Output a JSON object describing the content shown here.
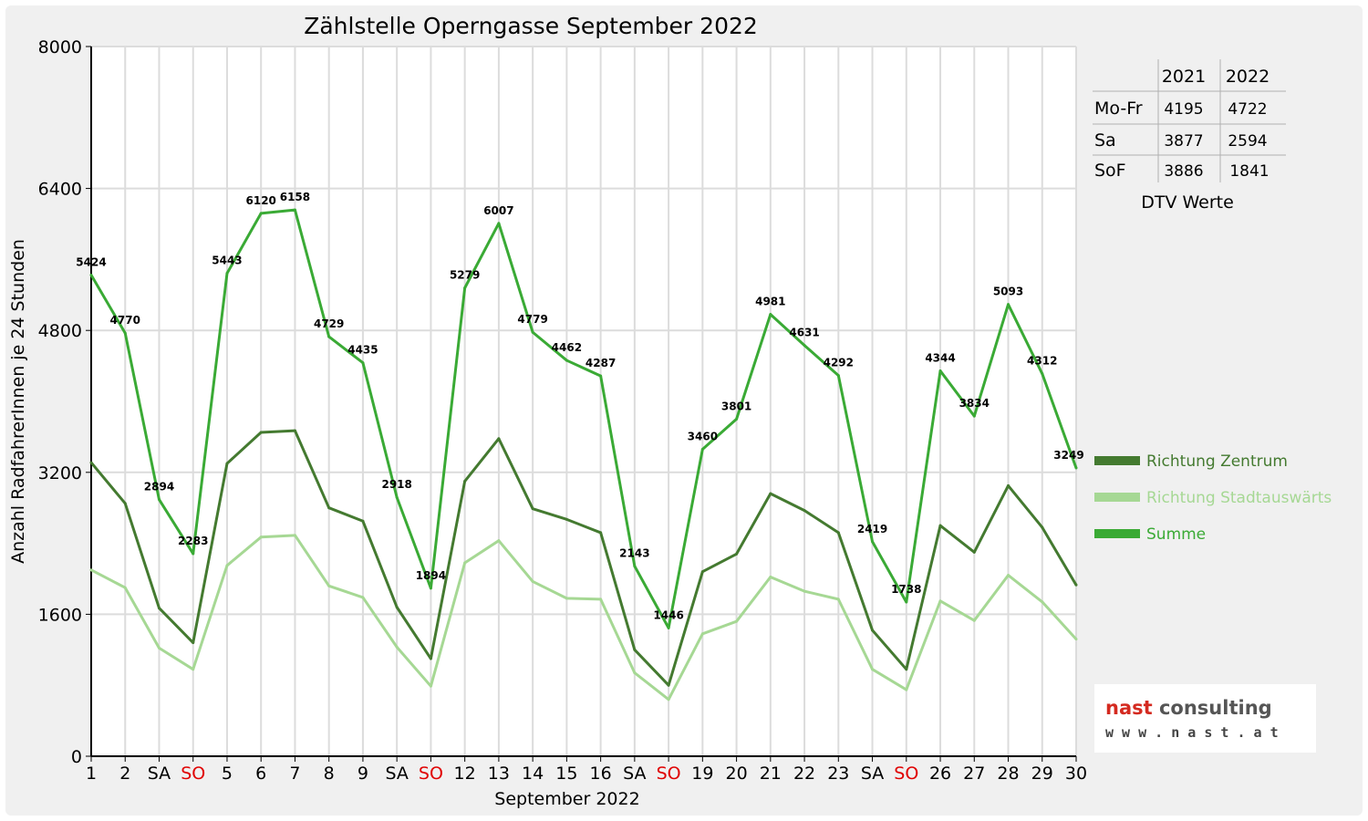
{
  "chart_data": {
    "type": "line",
    "title": "Zählstelle Operngasse September 2022",
    "xlabel": "September 2022",
    "ylabel": "Anzahl RadfahrerInnen je 24 Stunden",
    "ylim": [
      0,
      8000
    ],
    "yticks": [
      "0",
      "1600",
      "3200",
      "4800",
      "6400",
      "8000"
    ],
    "grid": true,
    "legend_position": "right",
    "categories": [
      "1",
      "2",
      "SA",
      "SO",
      "5",
      "6",
      "7",
      "8",
      "9",
      "SA",
      "SO",
      "12",
      "13",
      "14",
      "15",
      "16",
      "SA",
      "SO",
      "19",
      "20",
      "21",
      "22",
      "23",
      "SA",
      "SO",
      "26",
      "27",
      "28",
      "29",
      "30"
    ],
    "sunday_indices": [
      3,
      10,
      17,
      24
    ],
    "series": [
      {
        "name": "Richtung Zentrum",
        "color": "#447a30",
        "values": [
          3310,
          2850,
          1670,
          1280,
          3300,
          3650,
          3670,
          2800,
          2650,
          1680,
          1100,
          3100,
          3580,
          2790,
          2670,
          2520,
          1200,
          800,
          2080,
          2280,
          2960,
          2770,
          2520,
          1420,
          980,
          2600,
          2300,
          3050,
          2580,
          1930
        ]
      },
      {
        "name": "Richtung Stadtauswärts",
        "color": "#a6d894",
        "values": [
          2100,
          1900,
          1220,
          980,
          2150,
          2470,
          2490,
          1920,
          1790,
          1230,
          790,
          2180,
          2430,
          1970,
          1780,
          1770,
          940,
          640,
          1380,
          1520,
          2020,
          1860,
          1770,
          980,
          750,
          1750,
          1530,
          2040,
          1740,
          1320
        ]
      },
      {
        "name": "Summe",
        "color": "#3aaa35",
        "values": [
          5424,
          4770,
          2894,
          2283,
          5443,
          6120,
          6158,
          4729,
          4435,
          2918,
          1894,
          5279,
          6007,
          4779,
          4462,
          4287,
          2143,
          1446,
          3460,
          3801,
          4981,
          4631,
          4292,
          2419,
          1738,
          4344,
          3834,
          5093,
          4312,
          3249
        ],
        "data_labels": [
          "5424",
          "4770",
          "2894",
          "2283",
          "5443",
          "6120",
          "6158",
          "4729",
          "4435",
          "2918",
          "1894",
          "5279",
          "6007",
          "4779",
          "4462",
          "4287",
          "2143",
          "1446",
          "3460",
          "3801",
          "4981",
          "4631",
          "4292",
          "2419",
          "1738",
          "4344",
          "3834",
          "5093",
          "4312",
          "3249"
        ]
      }
    ]
  },
  "dtv_table": {
    "caption": "DTV Werte",
    "headers": [
      "2021",
      "2022"
    ],
    "rows": [
      {
        "label": "Mo-Fr",
        "v2021": "4195",
        "v2022": "4722"
      },
      {
        "label": "Sa",
        "v2021": "3877",
        "v2022": "2594"
      },
      {
        "label": "SoF",
        "v2021": "3886",
        "v2022": "1841"
      }
    ]
  },
  "logo": {
    "name": "nast consulting",
    "url": "w w w . n a s t . a t",
    "colors": {
      "nast": "#d42a20",
      "consulting": "#555555"
    }
  }
}
